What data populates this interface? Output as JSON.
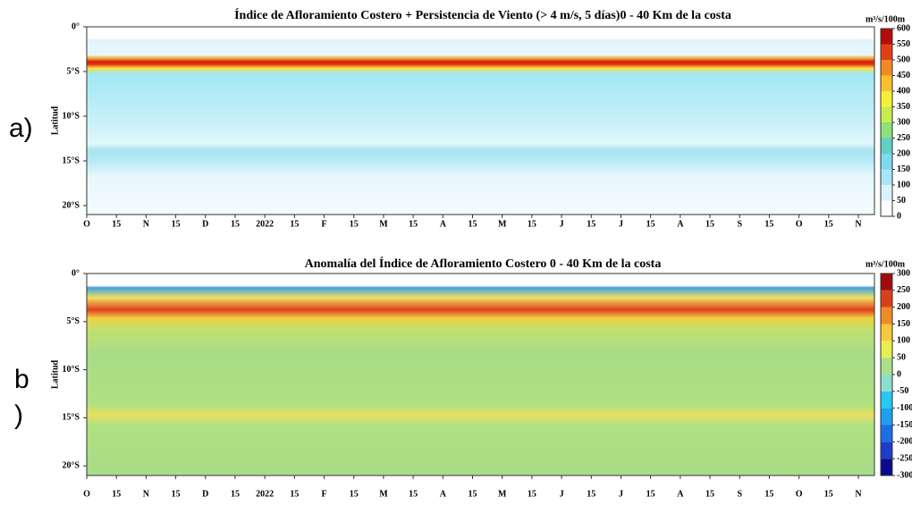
{
  "chart_data": [
    {
      "type": "heatmap",
      "title": "Índice de Afloramiento Costero + Persistencia de Viento (> 4 m/s, 5 días)0 - 40 Km de la costa",
      "panel_label": "a)",
      "ylabel": "Latitud",
      "categories": [
        "O",
        "15",
        "N",
        "15",
        "D",
        "15",
        "2022",
        "15",
        "F",
        "15",
        "M",
        "15",
        "A",
        "15",
        "M",
        "15",
        "J",
        "15",
        "J",
        "15",
        "A",
        "15",
        "S",
        "15",
        "O",
        "15",
        "N"
      ],
      "ylim": [
        -21,
        0
      ],
      "yticks": [
        {
          "value": 0,
          "label": "0°"
        },
        {
          "value": -5,
          "label": "5°S"
        },
        {
          "value": -10,
          "label": "10°S"
        },
        {
          "value": -15,
          "label": "15°S"
        },
        {
          "value": -20,
          "label": "20°S"
        }
      ],
      "colorbar": {
        "label": "m³/s/100m",
        "lim": [
          0,
          600
        ],
        "ticks": [
          0,
          50,
          100,
          150,
          200,
          250,
          300,
          350,
          400,
          450,
          500,
          550,
          600
        ],
        "colors": [
          "#ffffff",
          "#d8f4fb",
          "#a8e6f5",
          "#7ed8ee",
          "#5fd0c8",
          "#8ee07a",
          "#c8ec50",
          "#f4f03c",
          "#f8c030",
          "#f08a24",
          "#e04018",
          "#b40c0c"
        ]
      }
    },
    {
      "type": "heatmap",
      "title": "Anomalía del Índice de Afloramiento Costero 0 - 40 Km de la costa",
      "panel_label": [
        "b",
        ")"
      ],
      "ylabel": "Latitud",
      "categories": [
        "O",
        "15",
        "N",
        "15",
        "D",
        "15",
        "2022",
        "15",
        "F",
        "15",
        "M",
        "15",
        "A",
        "15",
        "M",
        "15",
        "J",
        "15",
        "J",
        "15",
        "A",
        "15",
        "S",
        "15",
        "O",
        "15",
        "N"
      ],
      "ylim": [
        -21,
        0
      ],
      "yticks": [
        {
          "value": 0,
          "label": "0°"
        },
        {
          "value": -5,
          "label": "5°S"
        },
        {
          "value": -10,
          "label": "10°S"
        },
        {
          "value": -15,
          "label": "15°S"
        },
        {
          "value": -20,
          "label": "20°S"
        }
      ],
      "colorbar": {
        "label": "m³/s/100m",
        "lim": [
          -300,
          300
        ],
        "ticks": [
          -300,
          -250,
          -200,
          -150,
          -100,
          -50,
          0,
          50,
          100,
          150,
          200,
          250,
          300
        ],
        "colors": [
          "#0a0a8c",
          "#1e3cc8",
          "#1e6ee6",
          "#1ea0f0",
          "#28c8f0",
          "#8edccc",
          "#a8e08a",
          "#e8ee50",
          "#f8c83c",
          "#f08a28",
          "#d8401c",
          "#a00c0c"
        ]
      }
    }
  ]
}
